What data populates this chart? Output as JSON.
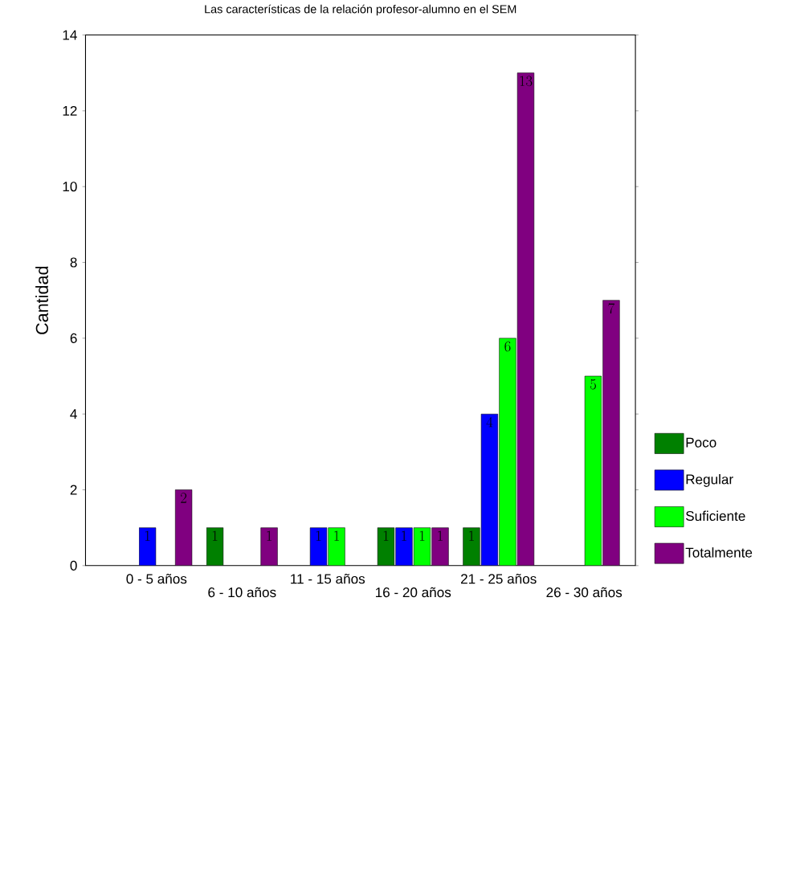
{
  "chart_data": {
    "type": "bar",
    "title": "Las características de la relación profesor-alumno en el SEM",
    "ylabel": "Cantidad",
    "categories": [
      "0 - 5 años",
      "6 - 10 años",
      "11 - 15 años",
      "16 - 20 años",
      "21 - 25 años",
      "26 - 30 años"
    ],
    "series": [
      {
        "name": "Poco",
        "color": "#008000",
        "values": [
          null,
          1,
          null,
          1,
          1,
          null
        ]
      },
      {
        "name": "Regular",
        "color": "#0000ff",
        "values": [
          1,
          null,
          1,
          1,
          4,
          null
        ]
      },
      {
        "name": "Suficiente",
        "color": "#00ff00",
        "values": [
          null,
          null,
          1,
          1,
          6,
          5
        ]
      },
      {
        "name": "Totalmente",
        "color": "#800080",
        "values": [
          2,
          1,
          null,
          1,
          13,
          7
        ]
      }
    ],
    "ylim": [
      0,
      14
    ],
    "yticks": [
      0,
      2,
      4,
      6,
      8,
      10,
      12,
      14
    ],
    "grid": false,
    "legend": "right",
    "data_labels": true
  }
}
